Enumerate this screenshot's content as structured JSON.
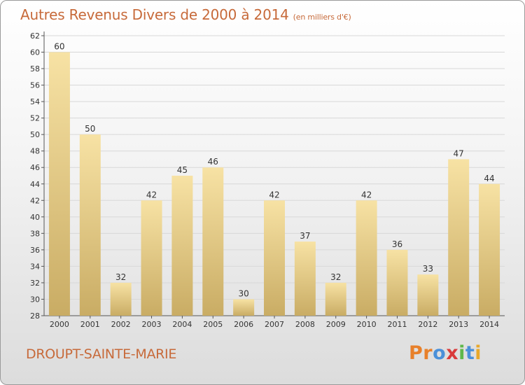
{
  "title": "Autres Revenus Divers de 2000 à 2014",
  "unit_label": "(en milliers d'€)",
  "location": "DROUPT-SAINTE-MARIE",
  "brand": {
    "letters": [
      "P",
      "r",
      "o",
      "x",
      "i",
      "t",
      "i"
    ],
    "colors": [
      "#e8802a",
      "#e8802a",
      "#4a90d9",
      "#d93a3a",
      "#5fb84a",
      "#4a90d9",
      "#e8a82a"
    ]
  },
  "colors": {
    "title": "#c76a3a",
    "bar_top": "#f7e2a4",
    "bar_bottom": "#c9ac64",
    "grid": "#d8d8d8"
  },
  "chart_data": {
    "type": "bar",
    "categories": [
      "2000",
      "2001",
      "2002",
      "2003",
      "2004",
      "2005",
      "2006",
      "2007",
      "2008",
      "2009",
      "2010",
      "2011",
      "2012",
      "2013",
      "2014"
    ],
    "values": [
      60,
      50,
      32,
      42,
      45,
      46,
      30,
      42,
      37,
      32,
      42,
      36,
      33,
      47,
      44
    ],
    "ylim": [
      28,
      62
    ],
    "yticks": [
      28,
      30,
      32,
      34,
      36,
      38,
      40,
      42,
      44,
      46,
      48,
      50,
      52,
      54,
      56,
      58,
      60,
      62
    ],
    "grid": true,
    "data_labels": true
  }
}
